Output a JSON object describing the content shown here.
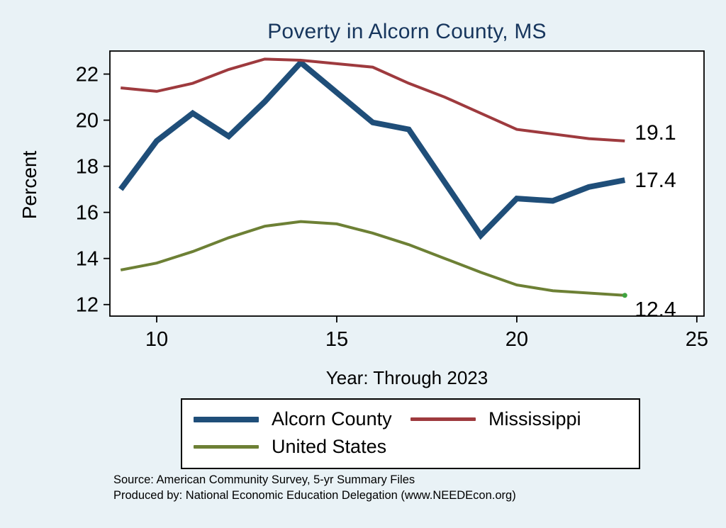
{
  "page": {
    "background": "#e9f2f6",
    "plot_background": "#ffffff",
    "title_color": "#17365d"
  },
  "chart_data": {
    "type": "line",
    "title": "Poverty in Alcorn County, MS",
    "xlabel": "Year: Through 2023",
    "ylabel": "Percent",
    "x": [
      9,
      10,
      11,
      12,
      13,
      14,
      15,
      16,
      17,
      18,
      19,
      20,
      21,
      22,
      23
    ],
    "xlim": [
      8.7,
      25.2
    ],
    "ylim": [
      11.5,
      23
    ],
    "xticks": [
      10,
      15,
      20,
      25
    ],
    "yticks": [
      12,
      14,
      16,
      18,
      20,
      22
    ],
    "grid": false,
    "legend_position": "bottom",
    "series": [
      {
        "name": "Alcorn County",
        "color": "#1f4e79",
        "line_width": 8,
        "values": [
          17.0,
          19.1,
          20.3,
          19.3,
          20.8,
          22.5,
          21.2,
          19.9,
          19.6,
          17.3,
          15.0,
          16.6,
          16.5,
          17.1,
          17.4
        ],
        "end_label": "17.4",
        "end_label_dy": 0
      },
      {
        "name": "Mississippi",
        "color": "#9e3a3e",
        "line_width": 4,
        "values": [
          21.4,
          21.25,
          21.6,
          22.2,
          22.65,
          22.6,
          22.45,
          22.3,
          21.6,
          21.0,
          20.3,
          19.6,
          19.4,
          19.2,
          19.1
        ],
        "end_label": "19.1",
        "end_label_dy": -12
      },
      {
        "name": "United States",
        "color": "#6d8035",
        "line_width": 4,
        "values": [
          13.5,
          13.8,
          14.3,
          14.9,
          15.4,
          15.6,
          15.5,
          15.1,
          14.6,
          14.0,
          13.4,
          12.85,
          12.6,
          12.5,
          12.4
        ],
        "end_label": "12.4",
        "end_label_dy": 20,
        "end_marker_color": "#3fa33f"
      }
    ]
  },
  "footer": {
    "line1": "Source: American Community Survey, 5-yr Summary Files",
    "line2": "Produced by: National Economic Education Delegation (www.NEEDEcon.org)"
  }
}
